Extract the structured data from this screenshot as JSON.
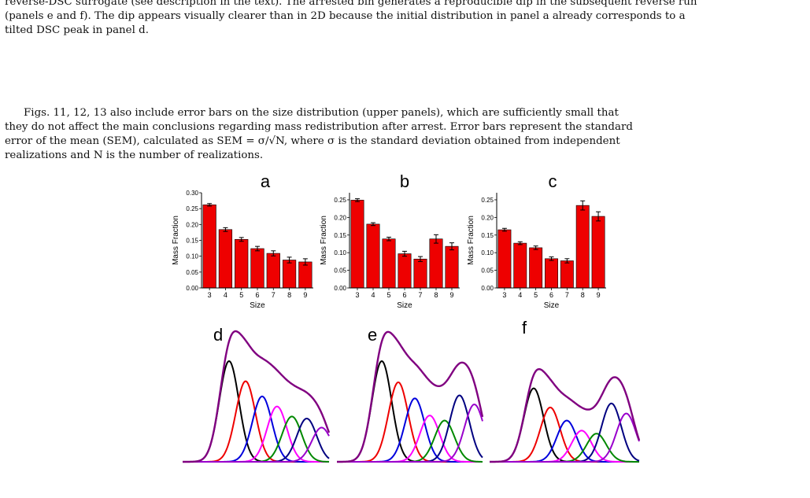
{
  "paragraph_top": [
    "reverse-DSC surrogate (see description in the text). The arrested bin generates a reproducible dip in the subsequent reverse run",
    "(panels e and f). The dip appears visually clearer than in 2D because the initial distribution in panel a already corresponds to a",
    "tilted DSC peak in panel d."
  ],
  "paragraph_errors": [
    "Figs. 11, 12, 13 also include error bars on the size distribution (upper panels), which are sufficiently small that",
    "they do not affect the main conclusions regarding mass redistribution after arrest. Error bars represent the standard",
    "error of the mean (SEM), calculated as SEM = σ/√N, where σ is the standard deviation obtained from independent",
    "realizations and N is the number of realizations."
  ],
  "colors": {
    "bar": "#ee0000",
    "peak_colors": [
      "#000000",
      "#ee0000",
      "#0000dd",
      "#ff00ff",
      "#008800",
      "#000080",
      "#9900cc"
    ],
    "envelope": "#800080"
  },
  "chart_data": [
    {
      "panel": "a",
      "type": "bar",
      "categories": [
        "3",
        "4",
        "5",
        "6",
        "7",
        "8",
        "9"
      ],
      "values": [
        0.262,
        0.184,
        0.153,
        0.124,
        0.109,
        0.088,
        0.082
      ],
      "errors": [
        0.004,
        0.006,
        0.006,
        0.007,
        0.008,
        0.009,
        0.01
      ],
      "xlabel": "Size",
      "ylabel": "Mass Fraction",
      "ylim": [
        0,
        0.3
      ],
      "yticks": [
        "0.00",
        "0.05",
        "0.10",
        "0.15",
        "0.20",
        "0.25",
        "0.30"
      ]
    },
    {
      "panel": "b",
      "type": "bar",
      "categories": [
        "3",
        "4",
        "5",
        "6",
        "7",
        "8",
        "9"
      ],
      "values": [
        0.249,
        0.181,
        0.139,
        0.097,
        0.082,
        0.139,
        0.118
      ],
      "errors": [
        0.004,
        0.004,
        0.005,
        0.007,
        0.007,
        0.012,
        0.01
      ],
      "xlabel": "Size",
      "ylabel": "Mass Fraction",
      "ylim": [
        0,
        0.27
      ],
      "yticks": [
        "0.00",
        "0.05",
        "0.10",
        "0.15",
        "0.20",
        "0.25"
      ]
    },
    {
      "panel": "c",
      "type": "bar",
      "categories": [
        "3",
        "4",
        "5",
        "6",
        "7",
        "8",
        "9"
      ],
      "values": [
        0.165,
        0.127,
        0.114,
        0.083,
        0.077,
        0.234,
        0.203
      ],
      "errors": [
        0.004,
        0.004,
        0.005,
        0.005,
        0.006,
        0.013,
        0.013
      ],
      "xlabel": "Size",
      "ylabel": "Mass Fraction",
      "ylim": [
        0,
        0.27
      ],
      "yticks": [
        "0.00",
        "0.05",
        "0.10",
        "0.15",
        "0.20",
        "0.25"
      ]
    },
    {
      "panel": "d",
      "type": "line",
      "peaks": {
        "height": [
          1.0,
          0.8,
          0.65,
          0.55,
          0.45,
          0.43,
          0.34
        ],
        "center": [
          0.0,
          1.0,
          2.0,
          2.9,
          3.8,
          4.7,
          5.6
        ]
      }
    },
    {
      "panel": "e",
      "type": "line",
      "peaks": {
        "height": [
          1.0,
          0.79,
          0.63,
          0.46,
          0.41,
          0.66,
          0.57
        ],
        "center": [
          0.0,
          1.0,
          2.0,
          2.9,
          3.8,
          4.7,
          5.6
        ]
      }
    },
    {
      "panel": "f",
      "type": "line",
      "peaks": {
        "height": [
          0.73,
          0.54,
          0.41,
          0.31,
          0.28,
          0.58,
          0.48
        ],
        "center": [
          0.0,
          1.0,
          2.0,
          2.9,
          3.8,
          4.7,
          5.6
        ]
      }
    }
  ]
}
